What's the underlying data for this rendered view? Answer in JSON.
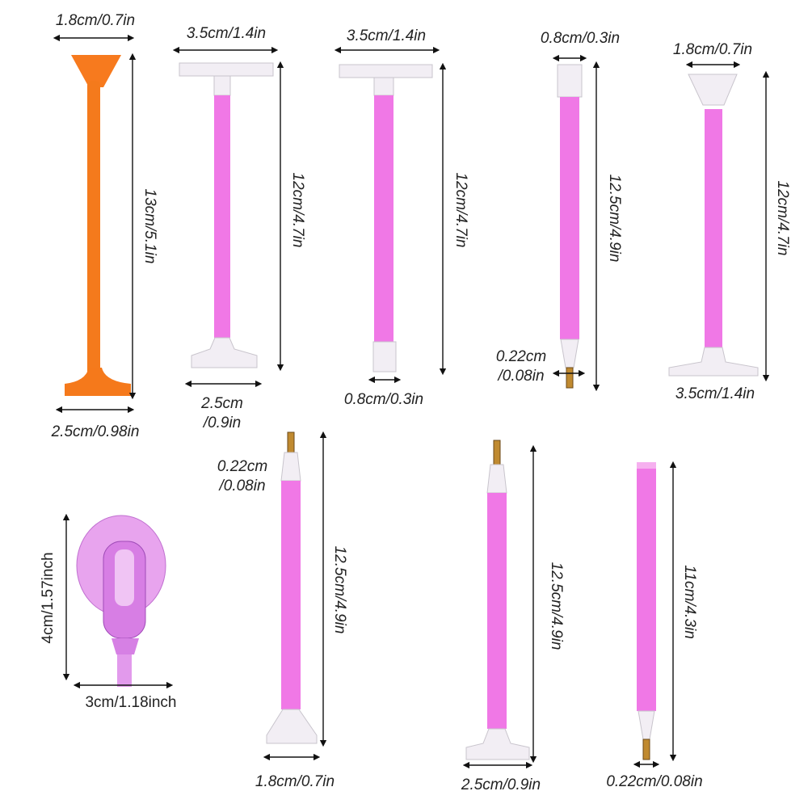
{
  "products": [
    {
      "top_width": "1.8cm/0.7in",
      "height": "13cm/5.1in",
      "bottom_width": "2.5cm/0.98in"
    },
    {
      "top_width": "3.5cm/1.4in",
      "height": "12cm/4.7in",
      "bottom_width": [
        "2.5cm",
        "/0.9in"
      ]
    },
    {
      "top_width": "3.5cm/1.4in",
      "height": "12cm/4.7in",
      "bottom_width": "0.8cm/0.3in"
    },
    {
      "top_width": "0.8cm/0.3in",
      "height": "12.5cm/4.9in",
      "tip_width": [
        "0.22cm",
        "/0.08in"
      ]
    },
    {
      "top_width": "1.8cm/0.7in",
      "height": "12cm/4.7in",
      "bottom_width": "3.5cm/1.4in"
    },
    {
      "height": "4cm/1.57inch",
      "width": "3cm/1.18inch"
    },
    {
      "tip_width": [
        "0.22cm",
        "/0.08in"
      ],
      "height": "12.5cm/4.9in",
      "bottom_width": "1.8cm/0.7in"
    },
    {
      "height": "12.5cm/4.9in",
      "bottom_width": "2.5cm/0.9in"
    },
    {
      "height": "11cm/4.3in",
      "bottom_width": "0.22cm/0.08in"
    }
  ]
}
